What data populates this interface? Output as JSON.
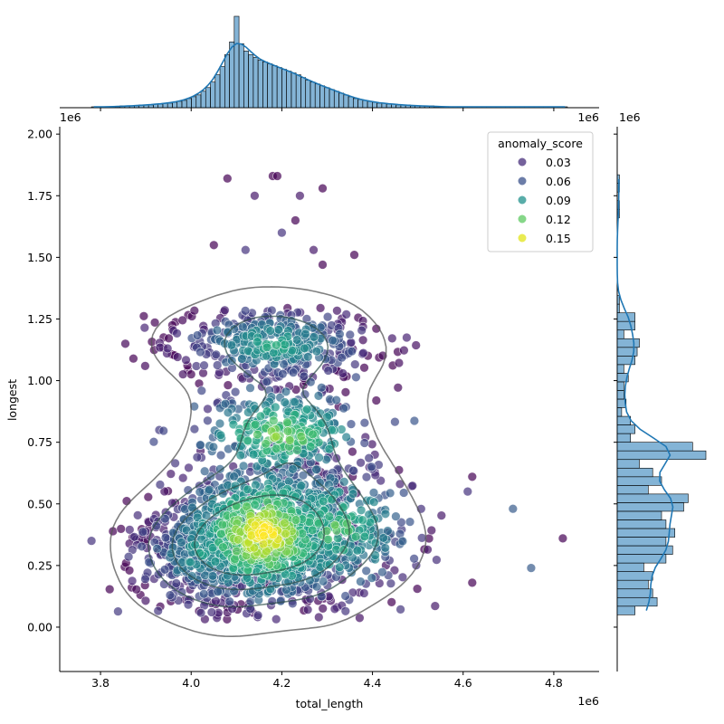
{
  "chart_data": {
    "type": "scatter",
    "title": "",
    "xlabel": "total_length",
    "ylabel": "longest",
    "x_offset_label": "1e6",
    "y_offset_label": "1e6",
    "xlim": [
      3.71,
      4.9
    ],
    "ylim": [
      -0.18,
      2.03
    ],
    "x_ticks": [
      3.8,
      4.0,
      4.2,
      4.4,
      4.6,
      4.8
    ],
    "x_tick_labels": [
      "3.8",
      "4.0",
      "4.2",
      "4.4",
      "4.6",
      "4.8"
    ],
    "y_ticks": [
      0.0,
      0.25,
      0.5,
      0.75,
      1.0,
      1.25,
      1.5,
      1.75,
      2.0
    ],
    "y_tick_labels": [
      "0.00",
      "0.25",
      "0.50",
      "0.75",
      "1.00",
      "1.25",
      "1.50",
      "1.75",
      "2.00"
    ],
    "grid": false,
    "hue_variable": "anomaly_score",
    "colormap": "viridis",
    "legend": {
      "title": "anomaly_score",
      "placement": "upper right",
      "entries": [
        {
          "label": "0.03",
          "color": "#472d7b"
        },
        {
          "label": "0.06",
          "color": "#3b528b"
        },
        {
          "label": "0.09",
          "color": "#21918c"
        },
        {
          "label": "0.12",
          "color": "#5ec962"
        },
        {
          "label": "0.15",
          "color": "#e2e418"
        }
      ]
    },
    "outlier_points": [
      {
        "x": 4.08,
        "y": 1.82,
        "score": 0.02
      },
      {
        "x": 4.18,
        "y": 1.83,
        "score": 0.02
      },
      {
        "x": 4.19,
        "y": 1.83,
        "score": 0.02
      },
      {
        "x": 4.29,
        "y": 1.78,
        "score": 0.02
      },
      {
        "x": 4.14,
        "y": 1.75,
        "score": 0.03
      },
      {
        "x": 4.24,
        "y": 1.75,
        "score": 0.03
      },
      {
        "x": 4.23,
        "y": 1.65,
        "score": 0.02
      },
      {
        "x": 4.2,
        "y": 1.6,
        "score": 0.04
      },
      {
        "x": 4.05,
        "y": 1.55,
        "score": 0.02
      },
      {
        "x": 4.12,
        "y": 1.53,
        "score": 0.04
      },
      {
        "x": 4.27,
        "y": 1.53,
        "score": 0.03
      },
      {
        "x": 4.36,
        "y": 1.51,
        "score": 0.02
      },
      {
        "x": 4.29,
        "y": 1.47,
        "score": 0.02
      },
      {
        "x": 3.78,
        "y": 0.35,
        "score": 0.04
      },
      {
        "x": 4.71,
        "y": 0.48,
        "score": 0.06
      },
      {
        "x": 4.75,
        "y": 0.24,
        "score": 0.06
      },
      {
        "x": 4.82,
        "y": 0.36,
        "score": 0.02
      },
      {
        "x": 4.62,
        "y": 0.61,
        "score": 0.02
      },
      {
        "x": 4.61,
        "y": 0.55,
        "score": 0.04
      },
      {
        "x": 4.62,
        "y": 0.18,
        "score": 0.02
      }
    ],
    "point_clusters": [
      {
        "center": [
          4.16,
          0.38
        ],
        "spread": [
          0.1,
          0.15
        ],
        "count": 1100,
        "score_range": [
          0.03,
          0.16
        ]
      },
      {
        "center": [
          4.18,
          1.15
        ],
        "spread": [
          0.11,
          0.08
        ],
        "count": 420,
        "score_range": [
          0.02,
          0.1
        ]
      },
      {
        "center": [
          4.2,
          0.78
        ],
        "spread": [
          0.09,
          0.09
        ],
        "count": 300,
        "score_range": [
          0.05,
          0.13
        ]
      },
      {
        "center": [
          4.02,
          0.3
        ],
        "spread": [
          0.08,
          0.12
        ],
        "count": 300,
        "score_range": [
          0.02,
          0.09
        ]
      },
      {
        "center": [
          4.32,
          0.4
        ],
        "spread": [
          0.09,
          0.15
        ],
        "count": 300,
        "score_range": [
          0.03,
          0.12
        ]
      }
    ],
    "kde_contour_levels": 4,
    "x_marginal_histogram": {
      "bins_start": 3.78,
      "bin_width": 0.0105,
      "counts": [
        1,
        1,
        1,
        1,
        1,
        1,
        2,
        2,
        2,
        2,
        3,
        3,
        3,
        4,
        4,
        5,
        5,
        6,
        7,
        8,
        10,
        12,
        14,
        18,
        22,
        28,
        36,
        45,
        58,
        72,
        100,
        70,
        62,
        58,
        55,
        52,
        50,
        48,
        46,
        44,
        42,
        40,
        38,
        36,
        33,
        30,
        28,
        26,
        24,
        22,
        20,
        18,
        16,
        14,
        12,
        10,
        9,
        8,
        7,
        6,
        5,
        5,
        4,
        4,
        3,
        3,
        3,
        2,
        2,
        2,
        2,
        2,
        1,
        1,
        1,
        1,
        1,
        1,
        1,
        1,
        1,
        1,
        1,
        1,
        1,
        1,
        1,
        1,
        1,
        1,
        1,
        1,
        1,
        1,
        1,
        1,
        1,
        1,
        1,
        1
      ]
    },
    "y_marginal_histogram": {
      "bins_start": 0.05,
      "bin_width": 0.035,
      "counts": [
        8,
        18,
        16,
        14,
        16,
        12,
        22,
        25,
        22,
        26,
        22,
        20,
        30,
        32,
        14,
        20,
        16,
        10,
        40,
        34,
        6,
        8,
        6,
        2,
        4,
        3,
        3,
        5,
        3,
        8,
        9,
        10,
        3,
        8,
        8,
        1,
        1,
        0,
        0,
        0,
        0,
        0,
        0,
        0,
        0,
        0,
        1,
        1,
        0,
        1,
        1
      ]
    }
  }
}
